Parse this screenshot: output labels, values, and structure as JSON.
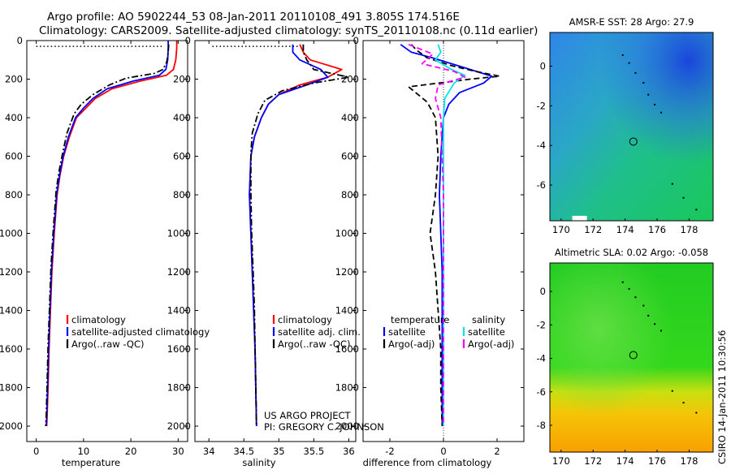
{
  "title_line1": "Argo profile: AO 5902244_53 08-Jan-2011 20110108_491 3.805S 174.516E",
  "title_line2": "Climatology: CARS2009. Satellite-adjusted climatology: synTS_20110108.nc (0.11d earlier)",
  "credit_line1": "US ARGO PROJECT",
  "credit_line2": "PI: GREGORY C. JOHNSON",
  "side_stamp": "CSIRO 14-Jan-2011 10:30:56",
  "colors": {
    "climatology": "#ff0000",
    "satellite": "#0000ff",
    "argo": "#000000",
    "sal_satellite": "#00e5e5",
    "sal_argo": "#ff00ff"
  },
  "chart_data": [
    {
      "type": "line",
      "panel": "temperature",
      "xlabel": "temperature",
      "ylabel": "",
      "xlim": [
        -2,
        32
      ],
      "ylim": [
        2080,
        0
      ],
      "xticks": [
        0,
        10,
        20,
        30
      ],
      "yticks": [
        0,
        200,
        400,
        600,
        800,
        1000,
        1200,
        1400,
        1600,
        1800,
        2000
      ],
      "legend": [
        "climatology",
        "satellite-adjusted climatology",
        "Argo(..raw -QC)"
      ],
      "series": [
        {
          "name": "climatology",
          "color": "#ff0000",
          "style": "solid",
          "x": [
            29.7,
            29.7,
            29.5,
            29.0,
            27.5,
            22.0,
            16.0,
            12.5,
            10.5,
            8.5,
            7.0,
            5.8,
            5.0,
            4.4,
            3.8,
            3.3,
            3.0,
            2.7,
            2.5,
            2.3,
            2.2
          ],
          "depth": [
            0,
            40,
            100,
            150,
            180,
            210,
            250,
            300,
            350,
            400,
            500,
            600,
            700,
            800,
            1000,
            1200,
            1400,
            1600,
            1800,
            1950,
            2000
          ]
        },
        {
          "name": "satellite-adjusted climatology",
          "color": "#0000ff",
          "style": "solid",
          "x": [
            27.9,
            27.9,
            27.8,
            27.4,
            26.0,
            20.5,
            15.0,
            12.0,
            10.0,
            8.3,
            6.8,
            5.7,
            4.9,
            4.3,
            3.7,
            3.2,
            2.9,
            2.6,
            2.4,
            2.2,
            2.1
          ],
          "depth": [
            0,
            40,
            100,
            150,
            180,
            210,
            250,
            300,
            350,
            400,
            500,
            600,
            700,
            800,
            1000,
            1200,
            1400,
            1600,
            1800,
            1950,
            2000
          ]
        },
        {
          "name": "Argo(..raw -QC)",
          "color": "#000000",
          "style": "dashdot",
          "x": [
            28.0,
            27.9,
            27.6,
            26.8,
            25.0,
            19.0,
            15.5,
            12.0,
            9.5,
            8.0,
            6.5,
            5.6,
            4.8,
            4.2,
            3.6,
            3.1,
            2.8,
            2.5,
            2.3,
            2.1,
            2.0
          ],
          "depth": [
            20,
            60,
            110,
            150,
            170,
            195,
            230,
            280,
            330,
            380,
            480,
            580,
            680,
            780,
            980,
            1180,
            1380,
            1580,
            1780,
            1950,
            2000
          ]
        }
      ],
      "surface_marker": {
        "x": [
          0,
          27
        ],
        "depth": 30,
        "style": "dotted"
      }
    },
    {
      "type": "line",
      "panel": "salinity",
      "xlabel": "salinity",
      "ylabel": "",
      "xlim": [
        33.8,
        36.1
      ],
      "ylim": [
        2080,
        0
      ],
      "xticks": [
        34,
        34.5,
        35,
        35.5,
        36
      ],
      "yticks": [
        0,
        200,
        400,
        600,
        800,
        1000,
        1200,
        1400,
        1600,
        1800,
        2000
      ],
      "legend": [
        "climatology",
        "satellite adj. clim.",
        "Argo(..raw -QC)"
      ],
      "series": [
        {
          "name": "climatology",
          "color": "#ff0000",
          "style": "solid",
          "x": [
            35.3,
            35.35,
            35.45,
            35.9,
            35.7,
            35.3,
            35.0,
            34.85,
            34.75,
            34.65,
            34.6,
            34.58,
            34.6,
            34.62,
            34.64,
            34.66,
            34.67,
            34.68
          ],
          "depth": [
            20,
            60,
            100,
            150,
            190,
            230,
            280,
            330,
            400,
            500,
            600,
            800,
            1000,
            1200,
            1400,
            1600,
            1800,
            2000
          ]
        },
        {
          "name": "satellite adj. clim.",
          "color": "#0000ff",
          "style": "solid",
          "x": [
            35.2,
            35.2,
            35.3,
            35.6,
            35.7,
            35.4,
            35.0,
            34.85,
            34.75,
            34.65,
            34.6,
            34.58,
            34.6,
            34.62,
            34.64,
            34.66,
            34.67,
            34.68
          ],
          "depth": [
            20,
            60,
            100,
            150,
            190,
            230,
            280,
            330,
            400,
            500,
            600,
            800,
            1000,
            1200,
            1400,
            1600,
            1800,
            2000
          ]
        },
        {
          "name": "Argo(..raw -QC)",
          "color": "#000000",
          "style": "dashdot",
          "x": [
            35.35,
            35.35,
            35.4,
            35.5,
            36.0,
            35.5,
            35.05,
            34.8,
            34.7,
            34.62,
            34.6,
            34.6,
            34.61,
            34.63,
            34.65,
            34.66,
            34.67,
            34.68
          ],
          "depth": [
            20,
            60,
            100,
            150,
            190,
            220,
            260,
            310,
            380,
            480,
            580,
            780,
            980,
            1180,
            1380,
            1580,
            1780,
            2000
          ]
        }
      ],
      "surface_marker": {
        "x": [
          34.05,
          35.3
        ],
        "depth": 30,
        "style": "dotted"
      }
    },
    {
      "type": "line",
      "panel": "difference",
      "xlabel": "difference from climatology",
      "ylabel": "",
      "xlim": [
        -3,
        3
      ],
      "ylim": [
        2080,
        0
      ],
      "xticks": [
        -2,
        0,
        2
      ],
      "yticks": [
        0,
        200,
        400,
        600,
        800,
        1000,
        1200,
        1400,
        1600,
        1800,
        2000
      ],
      "legend_title_left": "temperature",
      "legend_title_right": "salinity",
      "legend_left": [
        "satellite",
        "Argo(-adj)"
      ],
      "legend_right": [
        "satellite",
        "Argo(-adj)"
      ],
      "series": [
        {
          "name": "temperature satellite",
          "color": "#0000ff",
          "style": "solid",
          "x": [
            -1.6,
            -1.2,
            -0.4,
            0.3,
            1.0,
            1.8,
            1.5,
            0.6,
            0.2,
            0.0,
            -0.1,
            -0.15,
            -0.1,
            -0.05,
            -0.05,
            -0.05,
            -0.05,
            -0.05
          ],
          "depth": [
            20,
            60,
            90,
            120,
            150,
            185,
            220,
            270,
            330,
            400,
            600,
            800,
            1000,
            1200,
            1400,
            1600,
            1800,
            2000
          ]
        },
        {
          "name": "temperature Argo(-adj)",
          "color": "#000000",
          "style": "dashed",
          "x": [
            -1.2,
            -1.0,
            -0.6,
            0.3,
            1.2,
            2.1,
            1.0,
            -1.3,
            -0.6,
            -0.3,
            -0.2,
            -0.3,
            -0.5,
            -0.3,
            -0.2,
            -0.1,
            -0.1,
            -0.05
          ],
          "depth": [
            20,
            50,
            90,
            130,
            160,
            185,
            200,
            240,
            320,
            400,
            600,
            800,
            1000,
            1200,
            1400,
            1600,
            1800,
            2000
          ]
        },
        {
          "name": "salinity satellite",
          "color": "#00e5e5",
          "style": "solid",
          "x": [
            -0.2,
            -0.1,
            -0.3,
            0.3,
            0.8,
            0.4,
            0.05,
            0.0,
            0.0,
            0.0,
            0.0,
            0.0,
            0.0,
            0.0
          ],
          "depth": [
            20,
            60,
            100,
            150,
            180,
            220,
            300,
            400,
            800,
            1200,
            1500,
            1700,
            1900,
            2000
          ]
        },
        {
          "name": "salinity Argo(-adj)",
          "color": "#ff00ff",
          "style": "dashed",
          "x": [
            -1.3,
            -0.4,
            -0.8,
            0.4,
            0.8,
            -0.2,
            -0.3,
            -0.1,
            0.0,
            0.0,
            0.0
          ],
          "depth": [
            20,
            70,
            120,
            160,
            190,
            230,
            300,
            400,
            800,
            1200,
            2000
          ]
        }
      ]
    }
  ],
  "maps": [
    {
      "title": "AMSR-E SST: 28 Argo: 27.9",
      "xticks": [
        170,
        172,
        174,
        176,
        178
      ],
      "yticks": [
        0,
        -2,
        -4,
        -6
      ],
      "xlim": [
        169.3,
        179.5
      ],
      "ylim": [
        -7.8,
        1.7
      ],
      "profile_lon": 174.516,
      "profile_lat": -3.805
    },
    {
      "title": "Altimetric SLA: 0.02 Argo: -0.058",
      "xticks": [
        170,
        172,
        174,
        176,
        178
      ],
      "yticks": [
        0,
        -2,
        -4,
        -6,
        -8
      ],
      "xlim": [
        169.3,
        179.5
      ],
      "ylim": [
        -9.6,
        1.7
      ],
      "profile_lon": 174.516,
      "profile_lat": -3.805
    }
  ]
}
